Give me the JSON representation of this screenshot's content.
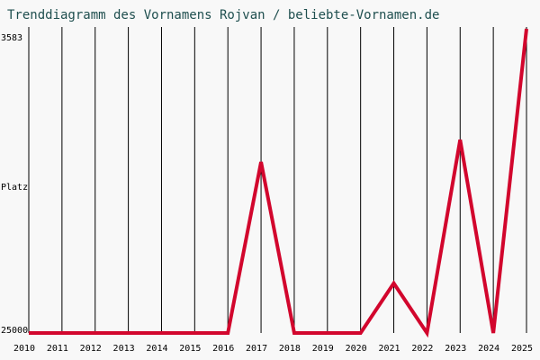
{
  "chart_data": {
    "type": "line",
    "title": "Trenddiagramm des Vornamens Rojvan / beliebte-Vornamen.de",
    "y_label": "Platz",
    "x": [
      2010,
      2011,
      2012,
      2013,
      2014,
      2015,
      2016,
      2017,
      2018,
      2019,
      2020,
      2021,
      2022,
      2023,
      2024,
      2025
    ],
    "values": [
      25000,
      25000,
      25000,
      25000,
      25000,
      25000,
      25000,
      12960,
      25000,
      25000,
      25000,
      21500,
      25000,
      11400,
      25000,
      3583
    ],
    "color": "#d2062d",
    "xlim": [
      2010,
      2025
    ],
    "xticks": [
      2010,
      2011,
      2012,
      2013,
      2014,
      2015,
      2016,
      2017,
      2018,
      2019,
      2020,
      2021,
      2022,
      2023,
      2024,
      2025
    ],
    "ylim": [
      25000,
      3583
    ],
    "yticks": [
      3583,
      25000
    ],
    "grid": true
  }
}
